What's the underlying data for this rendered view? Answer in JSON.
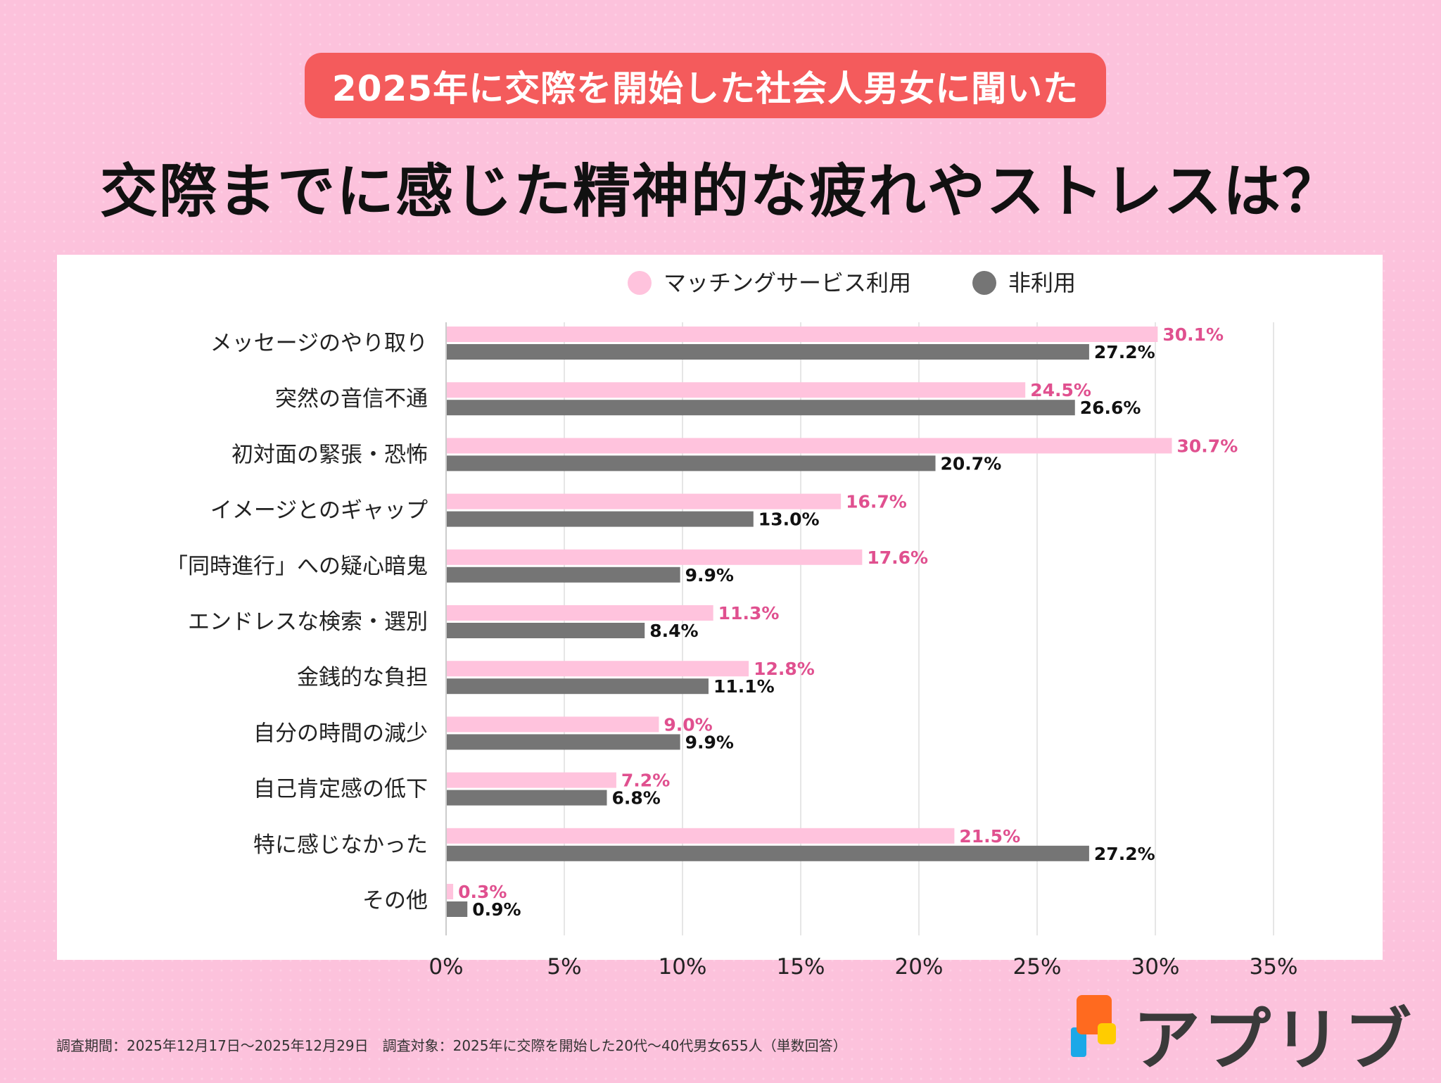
{
  "header": {
    "banner": "2025年に交際を開始した社会人男女に聞いた",
    "title": "交際までに感じた精神的な疲れやストレスは？"
  },
  "chart_data": {
    "type": "bar",
    "orientation": "horizontal",
    "categories": [
      "メッセージのやり取り",
      "突然の音信不通",
      "初対面の緊張・恐怖",
      "イメージとのギャップ",
      "「同時進行」への疑心暗鬼",
      "エンドレスな検索・選別",
      "金銭的な負担",
      "自分の時間の減少",
      "自己肯定感の低下",
      "特に感じなかった",
      "その他"
    ],
    "series": [
      {
        "name": "マッチングサービス利用",
        "color": "#ffc3dd",
        "label_color": "#e0508f",
        "values": [
          30.1,
          24.5,
          30.7,
          16.7,
          17.6,
          11.3,
          12.8,
          9.0,
          7.2,
          21.5,
          0.3
        ]
      },
      {
        "name": "非利用",
        "color": "#757575",
        "label_color": "#111111",
        "values": [
          27.2,
          26.6,
          20.7,
          13.0,
          9.9,
          8.4,
          11.1,
          9.9,
          6.8,
          27.2,
          0.9
        ]
      }
    ],
    "xlim": [
      0,
      35
    ],
    "ticks": [
      0,
      5,
      10,
      15,
      20,
      25,
      30,
      35
    ],
    "tick_suffix": "%",
    "legend_position": "top-right",
    "grid": true
  },
  "footnote": "調査期間：2025年12月17日〜2025年12月29日　調査対象：2025年に交際を開始した20代〜40代男女655人（単数回答）",
  "logo": {
    "text": "アプリブ",
    "colors": [
      "#ff6a1f",
      "#ffcc00",
      "#1ba8e8"
    ]
  }
}
